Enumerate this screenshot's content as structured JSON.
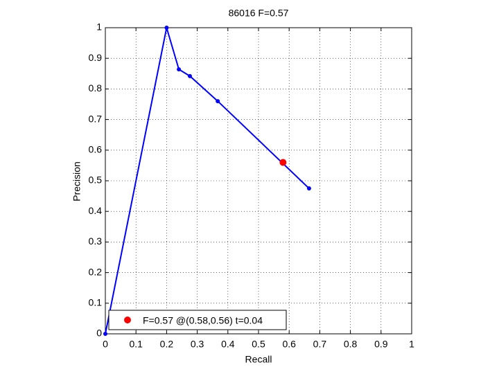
{
  "chart_data": {
    "type": "line",
    "title": "86016 F=0.57",
    "x_label": "Recall",
    "y_label": "Precision",
    "xlim": [
      0,
      1
    ],
    "ylim": [
      0,
      1
    ],
    "xticks": [
      0,
      0.1,
      0.2,
      0.3,
      0.4,
      0.5,
      0.6,
      0.7,
      0.8,
      0.9,
      1
    ],
    "yticks": [
      0,
      0.1,
      0.2,
      0.3,
      0.4,
      0.5,
      0.6,
      0.7,
      0.8,
      0.9,
      1
    ],
    "grid": true,
    "legend": "lower left",
    "series": [
      {
        "color": "#0000ff",
        "x": [
          0,
          0.2,
          0.24,
          0.276,
          0.367,
          0.665
        ],
        "values": [
          0,
          1,
          0.864,
          0.842,
          0.76,
          0.475
        ]
      },
      {
        "name": "F=0.57 @(0.58,0.56) t=0.04",
        "color": "#ff0000",
        "x": [
          0.58
        ],
        "values": [
          0.56
        ]
      }
    ]
  }
}
